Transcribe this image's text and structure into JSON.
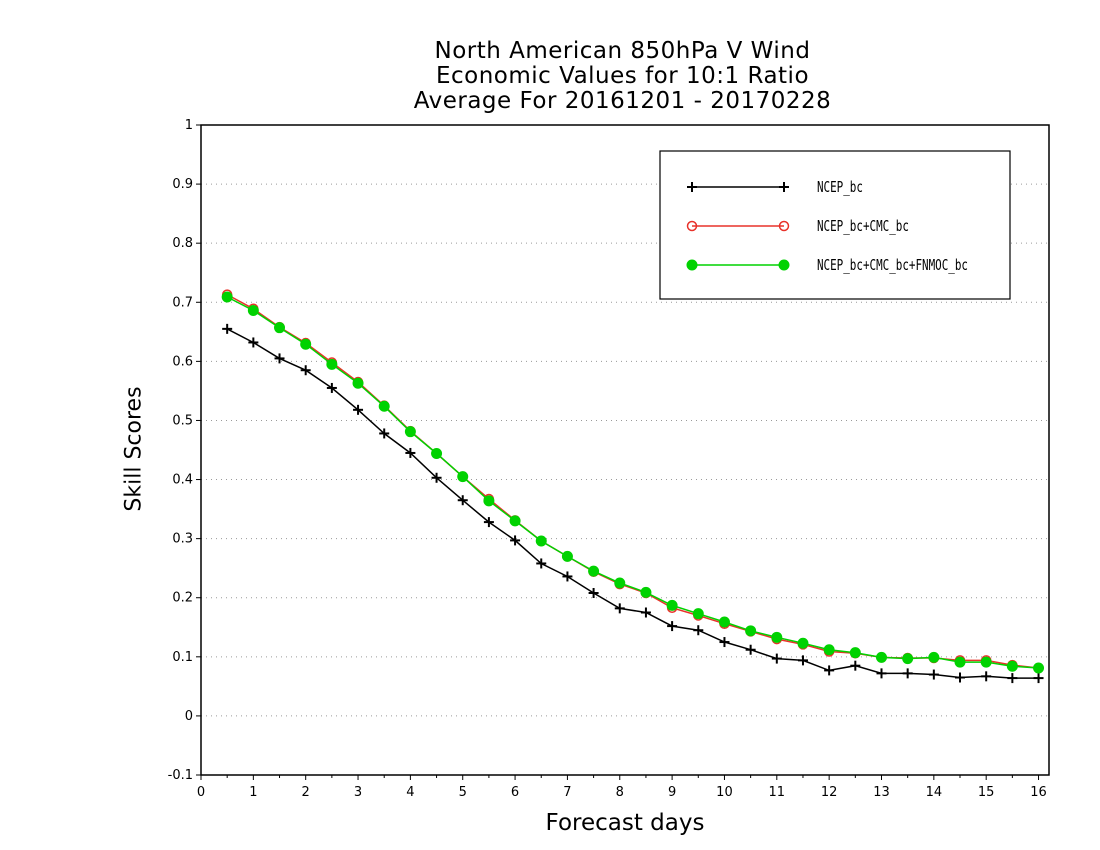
{
  "title": {
    "line1": "North American 850hPa V Wind",
    "line2": "Economic Values for 10:1 Ratio",
    "line3": "Average For 20161201 - 20170228"
  },
  "chart_data": {
    "type": "line",
    "title": "North American 850hPa V Wind Economic Values for 10:1 Ratio Average For 20161201 - 20170228",
    "xlabel": "Forecast days",
    "ylabel": "Skill Scores",
    "xlim": [
      0,
      16.2
    ],
    "ylim": [
      -0.1,
      1
    ],
    "xticks": [
      "0",
      "1",
      "2",
      "3",
      "4",
      "5",
      "6",
      "7",
      "8",
      "9",
      "10",
      "11",
      "12",
      "13",
      "14",
      "15",
      "16"
    ],
    "yticks": [
      "-0.1",
      "0",
      "0.1",
      "0.2",
      "0.3",
      "0.4",
      "0.5",
      "0.6",
      "0.7",
      "0.8",
      "0.9",
      "1"
    ],
    "grid": true,
    "legend_position": "top-right",
    "x": [
      0.5,
      1,
      1.5,
      2,
      2.5,
      3,
      3.5,
      4,
      4.5,
      5,
      5.5,
      6,
      6.5,
      7,
      7.5,
      8,
      8.5,
      9,
      9.5,
      10,
      10.5,
      11,
      11.5,
      12,
      12.5,
      13,
      13.5,
      14,
      14.5,
      15,
      15.5,
      16
    ],
    "series": [
      {
        "name": "NCEP_bc",
        "color": "#000000",
        "marker": "plus",
        "values": [
          0.655,
          0.632,
          0.605,
          0.585,
          0.555,
          0.518,
          0.478,
          0.445,
          0.403,
          0.365,
          0.328,
          0.297,
          0.258,
          0.236,
          0.208,
          0.182,
          0.175,
          0.152,
          0.145,
          0.125,
          0.112,
          0.097,
          0.094,
          0.077,
          0.085,
          0.072,
          0.072,
          0.07,
          0.065,
          0.067,
          0.064,
          0.064
        ]
      },
      {
        "name": "NCEP_bc+CMC_bc",
        "color": "#e8322a",
        "marker": "open-circle",
        "values": [
          0.713,
          0.689,
          0.658,
          0.631,
          0.598,
          0.565,
          0.525,
          0.482,
          0.444,
          0.405,
          0.367,
          0.331,
          0.296,
          0.27,
          0.244,
          0.223,
          0.208,
          0.183,
          0.17,
          0.156,
          0.143,
          0.13,
          0.121,
          0.109,
          0.106,
          0.099,
          0.098,
          0.098,
          0.094,
          0.094,
          0.086,
          0.081
        ]
      },
      {
        "name": "NCEP_bc+CMC_bc+FNMOC_bc",
        "color": "#00d200",
        "marker": "filled-circle",
        "values": [
          0.709,
          0.686,
          0.657,
          0.629,
          0.595,
          0.563,
          0.524,
          0.481,
          0.444,
          0.405,
          0.364,
          0.33,
          0.296,
          0.27,
          0.245,
          0.225,
          0.209,
          0.187,
          0.173,
          0.159,
          0.144,
          0.133,
          0.123,
          0.112,
          0.107,
          0.099,
          0.097,
          0.099,
          0.091,
          0.091,
          0.084,
          0.081
        ]
      }
    ]
  }
}
